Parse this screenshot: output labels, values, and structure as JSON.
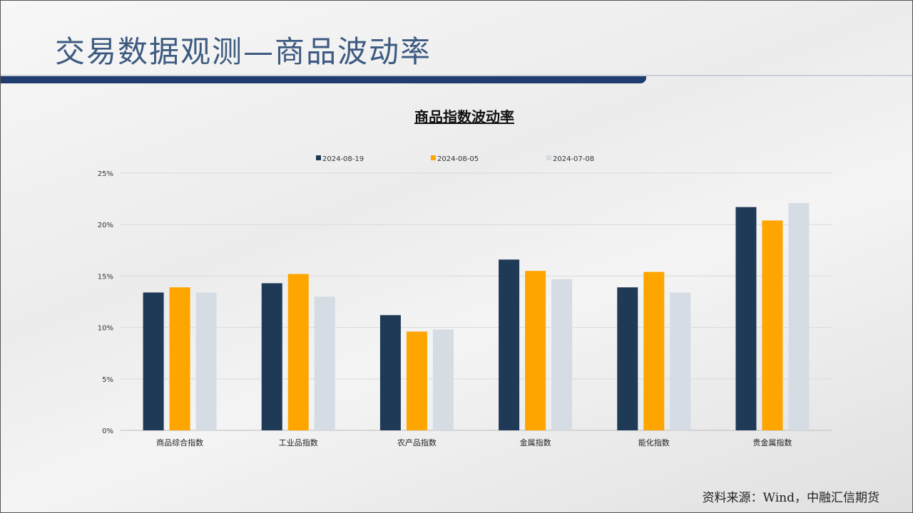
{
  "slide": {
    "title": "交易数据观测—商品波动率",
    "source": "资料来源：Wind，中融汇信期货"
  },
  "chart_data": {
    "type": "bar",
    "title": "商品指数波动率",
    "categories": [
      "商品综合指数",
      "工业品指数",
      "农产品指数",
      "金属指数",
      "能化指数",
      "贵金属指数"
    ],
    "series": [
      {
        "name": "2024-08-19",
        "color": "#1f3a56",
        "values": [
          13.4,
          14.3,
          11.2,
          16.6,
          13.9,
          21.7
        ]
      },
      {
        "name": "2024-08-05",
        "color": "#ffa500",
        "values": [
          13.9,
          15.2,
          9.6,
          15.5,
          15.4,
          20.4
        ]
      },
      {
        "name": "2024-07-08",
        "color": "#d6dce4",
        "values": [
          13.4,
          13.0,
          9.8,
          14.7,
          13.4,
          22.1
        ]
      }
    ],
    "ylim": [
      0,
      25
    ],
    "yticks": [
      "0%",
      "5%",
      "10%",
      "15%",
      "20%",
      "25%"
    ],
    "grid": true,
    "legend": "top"
  }
}
